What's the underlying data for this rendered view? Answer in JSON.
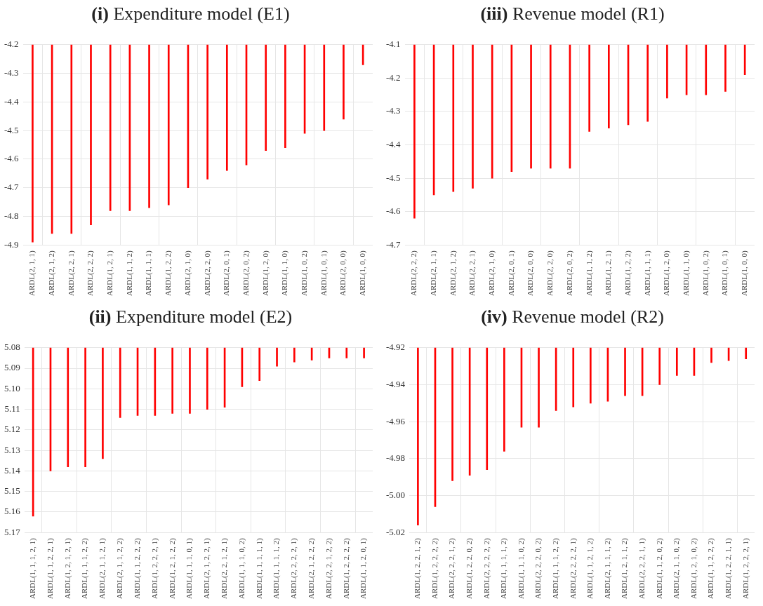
{
  "chart_data": [
    {
      "type": "bar",
      "title": "(i) Expenditure model (E1)",
      "categories": [
        "ARDL(2, 1, 1)",
        "ARDL(2, 1, 2)",
        "ARDL(2, 2, 1)",
        "ARDL(2, 2, 2)",
        "ARDL(1, 2, 1)",
        "ARDL(1, 1, 2)",
        "ARDL(1, 1, 1)",
        "ARDL(1, 2, 2)",
        "ARDL(2, 1, 0)",
        "ARDL(2, 2, 0)",
        "ARDL(2, 0, 1)",
        "ARDL(2, 0, 2)",
        "ARDL(1, 2, 0)",
        "ARDL(1, 1, 0)",
        "ARDL(1, 0, 2)",
        "ARDL(1, 0, 1)",
        "ARDL(2, 0, 0)",
        "ARDL(1, 0, 0)"
      ],
      "values": [
        -4.89,
        -4.86,
        -4.86,
        -4.83,
        -4.78,
        -4.78,
        -4.77,
        -4.76,
        -4.7,
        -4.67,
        -4.64,
        -4.62,
        -4.57,
        -4.56,
        -4.51,
        -4.5,
        -4.46,
        -4.27
      ],
      "color": "#ff0000",
      "ylim": [
        -4.9,
        -4.2
      ],
      "yticks": [
        -4.9,
        -4.8,
        -4.7,
        -4.6,
        -4.5,
        -4.4,
        -4.3,
        -4.2
      ],
      "grid": true
    },
    {
      "type": "bar",
      "title": "(iii) Revenue model (R1)",
      "categories": [
        "ARDL(2, 2, 2)",
        "ARDL(2, 1, 1)",
        "ARDL(2, 1, 2)",
        "ARDL(2, 2, 1)",
        "ARDL(2, 1, 0)",
        "ARDL(2, 0, 1)",
        "ARDL(2, 0, 0)",
        "ARDL(2, 2, 0)",
        "ARDL(2, 0, 2)",
        "ARDL(1, 1, 2)",
        "ARDL(1, 2, 1)",
        "ARDL(1, 2, 2)",
        "ARDL(1, 1, 1)",
        "ARDL(1, 2, 0)",
        "ARDL(1, 1, 0)",
        "ARDL(1, 0, 2)",
        "ARDL(1, 0, 1)",
        "ARDL(1, 0, 0)"
      ],
      "values": [
        -4.62,
        -4.55,
        -4.54,
        -4.53,
        -4.5,
        -4.48,
        -4.47,
        -4.47,
        -4.47,
        -4.36,
        -4.35,
        -4.34,
        -4.33,
        -4.26,
        -4.25,
        -4.25,
        -4.24,
        -4.19
      ],
      "color": "#ff0000",
      "ylim": [
        -4.7,
        -4.1
      ],
      "yticks": [
        -4.7,
        -4.6,
        -4.5,
        -4.4,
        -4.3,
        -4.2,
        -4.1
      ],
      "grid": true
    },
    {
      "type": "bar",
      "title": "(ii) Expenditure model (E2)",
      "categories": [
        "ARDL(1, 1, 1, 2, 1)",
        "ARDL(1, 1, 2, 2, 1)",
        "ARDL(1, 2, 1, 2, 1)",
        "ARDL(1, 1, 1, 2, 2)",
        "ARDL(2, 1, 1, 2, 1)",
        "ARDL(2, 1, 1, 2, 2)",
        "ARDL(1, 1, 2, 2, 2)",
        "ARDL(1, 2, 2, 2, 1)",
        "ARDL(1, 2, 1, 2, 2)",
        "ARDL(1, 1, 1, 0, 1)",
        "ARDL(2, 1, 2, 2, 1)",
        "ARDL(2, 2, 1, 2, 1)",
        "ARDL(1, 1, 1, 0, 2)",
        "ARDL(1, 1, 1, 1, 1)",
        "ARDL(1, 1, 1, 1, 2)",
        "ARDL(2, 2, 2, 2, 1)",
        "ARDL(2, 1, 2, 2, 2)",
        "ARDL(2, 2, 1, 2, 2)",
        "ARDL(1, 2, 2, 2, 2)",
        "ARDL(1, 1, 2, 0, 1)"
      ],
      "values": [
        5.162,
        5.14,
        5.138,
        5.138,
        5.134,
        5.114,
        5.113,
        5.113,
        5.112,
        5.112,
        5.11,
        5.109,
        5.099,
        5.096,
        5.089,
        5.087,
        5.086,
        5.085,
        5.085,
        5.085
      ],
      "color": "#ff0000",
      "ylim": [
        5.17,
        5.08
      ],
      "yticks": [
        {
          "value": 5.08,
          "label": "5.08"
        },
        {
          "value": 5.09,
          "label": "5.09"
        },
        {
          "value": 5.1,
          "label": "5.10"
        },
        {
          "value": 5.11,
          "label": "5.11"
        },
        {
          "value": 5.12,
          "label": "5.12"
        },
        {
          "value": 5.13,
          "label": "5.13"
        },
        {
          "value": 5.14,
          "label": "5.14"
        },
        {
          "value": 5.15,
          "label": "5.15"
        },
        {
          "value": 5.16,
          "label": "5.16"
        },
        {
          "value": 5.17,
          "label": "5.17"
        }
      ],
      "grid": true
    },
    {
      "type": "bar",
      "title": "(iv) Revenue model (R2)",
      "categories": [
        "ARDL(1, 2, 2, 1, 2)",
        "ARDL(1, 2, 2, 2, 2)",
        "ARDL(2, 2, 2, 1, 2)",
        "ARDL(1, 2, 2, 0, 2)",
        "ARDL(2, 2, 2, 2, 2)",
        "ARDL(1, 1, 1, 1, 2)",
        "ARDL(1, 1, 1, 0, 2)",
        "ARDL(2, 2, 2, 0, 2)",
        "ARDL(1, 1, 1, 2, 2)",
        "ARDL(2, 2, 2, 2, 1)",
        "ARDL(1, 1, 2, 1, 2)",
        "ARDL(2, 1, 1, 1, 2)",
        "ARDL(1, 2, 1, 1, 2)",
        "ARDL(2, 2, 2, 1, 1)",
        "ARDL(1, 1, 2, 0, 2)",
        "ARDL(2, 1, 1, 0, 2)",
        "ARDL(1, 2, 1, 0, 2)",
        "ARDL(1, 1, 2, 2, 2)",
        "ARDL(1, 2, 2, 1, 1)",
        "ARDL(1, 2, 2, 2, 1)"
      ],
      "values": [
        -5.016,
        -5.006,
        -4.992,
        -4.989,
        -4.986,
        -4.976,
        -4.963,
        -4.963,
        -4.954,
        -4.952,
        -4.95,
        -4.949,
        -4.946,
        -4.946,
        -4.94,
        -4.935,
        -4.935,
        -4.928,
        -4.927,
        -4.926
      ],
      "color": "#ff0000",
      "ylim": [
        -5.02,
        -4.92
      ],
      "yticks": [
        -5.02,
        {
          "value": -5,
          "label": "-5.00"
        },
        -4.98,
        -4.96,
        -4.94,
        -4.92
      ],
      "grid": true
    }
  ]
}
